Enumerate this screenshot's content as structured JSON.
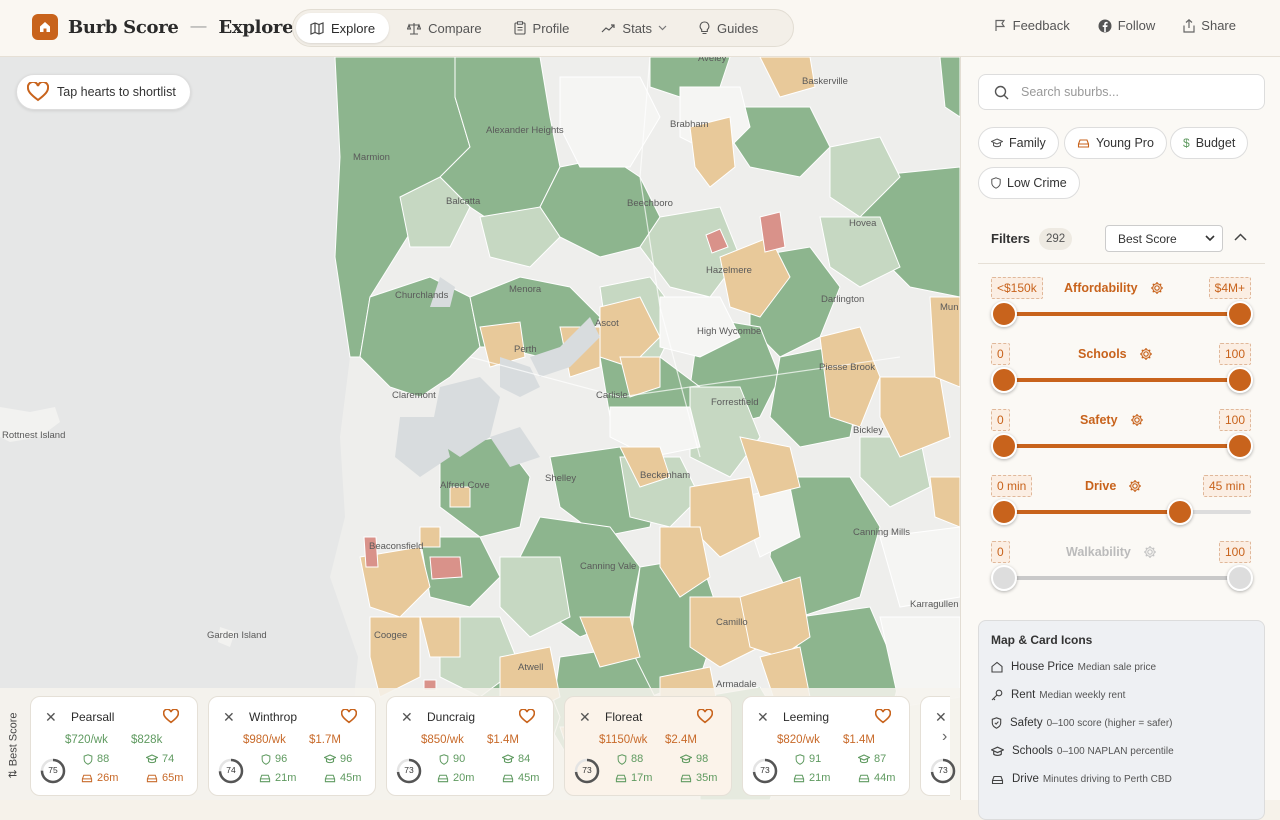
{
  "header": {
    "brand": "Burb Score",
    "dash": "—",
    "page": "Explore",
    "nav": [
      {
        "label": "Explore",
        "icon": "map-icon",
        "active": true
      },
      {
        "label": "Compare",
        "icon": "scales-icon"
      },
      {
        "label": "Profile",
        "icon": "clipboard-icon"
      },
      {
        "label": "Stats",
        "icon": "trend-icon"
      },
      {
        "label": "Guides",
        "icon": "lightbulb-icon"
      }
    ],
    "actions": {
      "feedback": "Feedback",
      "follow": "Follow",
      "share": "Share"
    }
  },
  "map": {
    "shortlist_hint": "Tap hearts to shortlist",
    "labels": [
      {
        "text": "Alexander Heights"
      },
      {
        "text": "Marmion"
      },
      {
        "text": "Balcatta"
      },
      {
        "text": "Beechboro"
      },
      {
        "text": "Brabham"
      },
      {
        "text": "Baskerville"
      },
      {
        "text": "Hovea"
      },
      {
        "text": "Hazelmere"
      },
      {
        "text": "Churchlands"
      },
      {
        "text": "Menora"
      },
      {
        "text": "Darlington"
      },
      {
        "text": "Perth"
      },
      {
        "text": "Ascot"
      },
      {
        "text": "High Wycombe"
      },
      {
        "text": "Piesse Brook"
      },
      {
        "text": "Claremont"
      },
      {
        "text": "Carlisle"
      },
      {
        "text": "Forrestfield"
      },
      {
        "text": "Rottnest Island"
      },
      {
        "text": "Bickley"
      },
      {
        "text": "Beckenham"
      },
      {
        "text": "Alfred Cove"
      },
      {
        "text": "Shelley"
      },
      {
        "text": "Beaconsfield"
      },
      {
        "text": "Canning Mills"
      },
      {
        "text": "Canning Vale"
      },
      {
        "text": "Karragullen"
      },
      {
        "text": "Camillo"
      },
      {
        "text": "Garden Island"
      },
      {
        "text": "Coogee"
      },
      {
        "text": "Atwell"
      },
      {
        "text": "Armadale"
      },
      {
        "text": "Aveley"
      },
      {
        "text": "Mun"
      }
    ]
  },
  "cards": {
    "sort_label": "Best Score",
    "items": [
      {
        "name": "Pearsall",
        "rent": "$720/wk",
        "sale": "$828k",
        "score": "75",
        "safety": "88",
        "schools": "74",
        "drive": "26m",
        "drive2": "65m",
        "green": true
      },
      {
        "name": "Winthrop",
        "rent": "$980/wk",
        "sale": "$1.7M",
        "score": "74",
        "safety": "96",
        "schools": "96",
        "drive": "21m",
        "drive2": "45m",
        "green": false
      },
      {
        "name": "Duncraig",
        "rent": "$850/wk",
        "sale": "$1.4M",
        "score": "73",
        "safety": "90",
        "schools": "84",
        "drive": "20m",
        "drive2": "45m",
        "green": false
      },
      {
        "name": "Floreat",
        "rent": "$1150/wk",
        "sale": "$2.4M",
        "score": "73",
        "safety": "88",
        "schools": "98",
        "drive": "17m",
        "drive2": "35m",
        "green": false
      },
      {
        "name": "Leeming",
        "rent": "$820/wk",
        "sale": "$1.4M",
        "score": "73",
        "safety": "91",
        "schools": "87",
        "drive": "21m",
        "drive2": "44m",
        "green": false
      },
      {
        "name": "",
        "rent": "",
        "sale": "",
        "score": "73",
        "safety": "",
        "schools": "",
        "drive": "",
        "drive2": "",
        "green": false
      }
    ]
  },
  "sidebar": {
    "search_placeholder": "Search suburbs...",
    "personas": [
      "Family",
      "Young Pro",
      "Budget",
      "Low Crime"
    ],
    "filters_label": "Filters",
    "count": "292",
    "sort_value": "Best Score",
    "filters": [
      {
        "label": "Affordability",
        "min": "<$150k",
        "max": "$4M+",
        "lo": 0,
        "hi": 1,
        "enabled": true
      },
      {
        "label": "Schools",
        "min": "0",
        "max": "100",
        "lo": 0,
        "hi": 1,
        "enabled": true
      },
      {
        "label": "Safety",
        "min": "0",
        "max": "100",
        "lo": 0,
        "hi": 1,
        "enabled": true
      },
      {
        "label": "Drive",
        "min": "0 min",
        "max": "45 min",
        "lo": 0,
        "hi": 0.75,
        "enabled": true
      },
      {
        "label": "Walkability",
        "min": "0",
        "max": "100",
        "lo": 0,
        "hi": 1,
        "enabled": false
      }
    ],
    "legend": {
      "title": "Map & Card Icons",
      "items": [
        {
          "label": "House Price",
          "desc": "Median sale price"
        },
        {
          "label": "Rent",
          "desc": "Median weekly rent"
        },
        {
          "label": "Safety",
          "desc": "0–100 score (higher = safer)"
        },
        {
          "label": "Schools",
          "desc": "0–100 NAPLAN percentile"
        },
        {
          "label": "Drive",
          "desc": "Minutes driving to Perth CBD"
        }
      ]
    }
  },
  "colors": {
    "accent": "#c8631c",
    "green": "#5f9a60",
    "tan": "#e8c99a",
    "red": "#d98c80"
  }
}
